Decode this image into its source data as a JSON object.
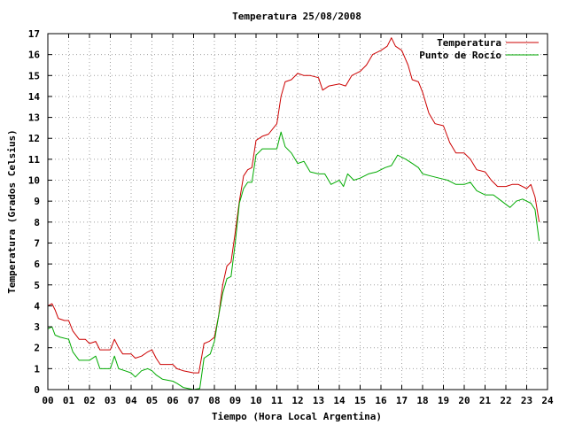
{
  "chart_data": {
    "type": "line",
    "title": "Temperatura 25/08/2008",
    "xlabel": "Tiempo (Hora Local Argentina)",
    "ylabel": "Temperatura (Grados Celsius)",
    "xlim": [
      0,
      24
    ],
    "ylim": [
      0,
      17
    ],
    "x_ticks": [
      "00",
      "01",
      "02",
      "03",
      "04",
      "05",
      "06",
      "07",
      "08",
      "09",
      "10",
      "11",
      "12",
      "13",
      "14",
      "15",
      "16",
      "17",
      "18",
      "19",
      "20",
      "21",
      "22",
      "23",
      "24"
    ],
    "y_ticks": [
      0,
      1,
      2,
      3,
      4,
      5,
      6,
      7,
      8,
      9,
      10,
      11,
      12,
      13,
      14,
      15,
      16,
      17
    ],
    "grid": true,
    "legend_position": "top-right",
    "series": [
      {
        "name": "Temperatura",
        "color": "#cc0000",
        "points": [
          [
            0.0,
            4.0
          ],
          [
            0.2,
            4.1
          ],
          [
            0.35,
            3.8
          ],
          [
            0.5,
            3.4
          ],
          [
            0.8,
            3.3
          ],
          [
            1.0,
            3.3
          ],
          [
            1.2,
            2.8
          ],
          [
            1.5,
            2.4
          ],
          [
            1.8,
            2.4
          ],
          [
            2.0,
            2.2
          ],
          [
            2.3,
            2.3
          ],
          [
            2.5,
            1.9
          ],
          [
            3.0,
            1.9
          ],
          [
            3.2,
            2.4
          ],
          [
            3.4,
            2.0
          ],
          [
            3.6,
            1.7
          ],
          [
            4.0,
            1.7
          ],
          [
            4.2,
            1.5
          ],
          [
            4.5,
            1.6
          ],
          [
            4.8,
            1.8
          ],
          [
            5.0,
            1.9
          ],
          [
            5.2,
            1.5
          ],
          [
            5.4,
            1.2
          ],
          [
            5.8,
            1.2
          ],
          [
            6.0,
            1.2
          ],
          [
            6.2,
            1.0
          ],
          [
            6.5,
            0.9
          ],
          [
            7.0,
            0.8
          ],
          [
            7.25,
            0.8
          ],
          [
            7.5,
            2.2
          ],
          [
            7.75,
            2.3
          ],
          [
            8.0,
            2.5
          ],
          [
            8.2,
            3.5
          ],
          [
            8.4,
            5.0
          ],
          [
            8.6,
            5.9
          ],
          [
            8.8,
            6.1
          ],
          [
            9.0,
            7.5
          ],
          [
            9.2,
            9.0
          ],
          [
            9.4,
            10.2
          ],
          [
            9.6,
            10.5
          ],
          [
            9.8,
            10.6
          ],
          [
            10.0,
            11.9
          ],
          [
            10.3,
            12.1
          ],
          [
            10.6,
            12.2
          ],
          [
            11.0,
            12.7
          ],
          [
            11.2,
            14.0
          ],
          [
            11.4,
            14.7
          ],
          [
            11.7,
            14.8
          ],
          [
            12.0,
            15.1
          ],
          [
            12.3,
            15.0
          ],
          [
            12.6,
            15.0
          ],
          [
            13.0,
            14.9
          ],
          [
            13.2,
            14.3
          ],
          [
            13.5,
            14.5
          ],
          [
            14.0,
            14.6
          ],
          [
            14.3,
            14.5
          ],
          [
            14.6,
            15.0
          ],
          [
            15.0,
            15.2
          ],
          [
            15.3,
            15.5
          ],
          [
            15.6,
            16.0
          ],
          [
            16.0,
            16.2
          ],
          [
            16.3,
            16.4
          ],
          [
            16.5,
            16.8
          ],
          [
            16.7,
            16.4
          ],
          [
            17.0,
            16.2
          ],
          [
            17.3,
            15.5
          ],
          [
            17.5,
            14.8
          ],
          [
            17.8,
            14.7
          ],
          [
            18.0,
            14.2
          ],
          [
            18.3,
            13.2
          ],
          [
            18.6,
            12.7
          ],
          [
            19.0,
            12.6
          ],
          [
            19.3,
            11.8
          ],
          [
            19.6,
            11.3
          ],
          [
            20.0,
            11.3
          ],
          [
            20.3,
            11.0
          ],
          [
            20.6,
            10.5
          ],
          [
            21.0,
            10.4
          ],
          [
            21.3,
            10.0
          ],
          [
            21.6,
            9.7
          ],
          [
            22.0,
            9.7
          ],
          [
            22.3,
            9.8
          ],
          [
            22.6,
            9.8
          ],
          [
            23.0,
            9.6
          ],
          [
            23.2,
            9.8
          ],
          [
            23.4,
            9.2
          ],
          [
            23.6,
            8.0
          ]
        ]
      },
      {
        "name": "Punto de Rocío",
        "color": "#00aa00",
        "points": [
          [
            0.0,
            2.9
          ],
          [
            0.2,
            3.0
          ],
          [
            0.35,
            2.6
          ],
          [
            0.6,
            2.5
          ],
          [
            1.0,
            2.4
          ],
          [
            1.2,
            1.8
          ],
          [
            1.5,
            1.4
          ],
          [
            2.0,
            1.4
          ],
          [
            2.3,
            1.6
          ],
          [
            2.5,
            1.0
          ],
          [
            3.0,
            1.0
          ],
          [
            3.2,
            1.6
          ],
          [
            3.4,
            1.0
          ],
          [
            3.7,
            0.9
          ],
          [
            4.0,
            0.8
          ],
          [
            4.2,
            0.6
          ],
          [
            4.5,
            0.9
          ],
          [
            4.8,
            1.0
          ],
          [
            5.0,
            0.9
          ],
          [
            5.2,
            0.7
          ],
          [
            5.5,
            0.5
          ],
          [
            6.0,
            0.4
          ],
          [
            6.2,
            0.3
          ],
          [
            6.5,
            0.1
          ],
          [
            7.0,
            0.0
          ],
          [
            7.3,
            0.05
          ],
          [
            7.5,
            1.5
          ],
          [
            7.8,
            1.7
          ],
          [
            8.0,
            2.3
          ],
          [
            8.2,
            3.5
          ],
          [
            8.4,
            4.6
          ],
          [
            8.6,
            5.3
          ],
          [
            8.8,
            5.4
          ],
          [
            9.0,
            7.0
          ],
          [
            9.2,
            8.9
          ],
          [
            9.4,
            9.6
          ],
          [
            9.6,
            9.9
          ],
          [
            9.8,
            9.9
          ],
          [
            10.0,
            11.2
          ],
          [
            10.3,
            11.5
          ],
          [
            10.6,
            11.5
          ],
          [
            11.0,
            11.5
          ],
          [
            11.2,
            12.3
          ],
          [
            11.4,
            11.6
          ],
          [
            11.7,
            11.3
          ],
          [
            12.0,
            10.8
          ],
          [
            12.3,
            10.9
          ],
          [
            12.6,
            10.4
          ],
          [
            13.0,
            10.3
          ],
          [
            13.3,
            10.3
          ],
          [
            13.6,
            9.8
          ],
          [
            14.0,
            10.0
          ],
          [
            14.2,
            9.7
          ],
          [
            14.4,
            10.3
          ],
          [
            14.7,
            10.0
          ],
          [
            15.0,
            10.1
          ],
          [
            15.4,
            10.3
          ],
          [
            15.8,
            10.4
          ],
          [
            16.2,
            10.6
          ],
          [
            16.5,
            10.7
          ],
          [
            16.8,
            11.2
          ],
          [
            17.2,
            11.0
          ],
          [
            17.5,
            10.8
          ],
          [
            17.8,
            10.6
          ],
          [
            18.0,
            10.3
          ],
          [
            18.4,
            10.2
          ],
          [
            18.8,
            10.1
          ],
          [
            19.2,
            10.0
          ],
          [
            19.6,
            9.8
          ],
          [
            20.0,
            9.8
          ],
          [
            20.3,
            9.9
          ],
          [
            20.6,
            9.5
          ],
          [
            21.0,
            9.3
          ],
          [
            21.4,
            9.3
          ],
          [
            21.8,
            9.0
          ],
          [
            22.2,
            8.7
          ],
          [
            22.5,
            9.0
          ],
          [
            22.8,
            9.1
          ],
          [
            23.0,
            9.0
          ],
          [
            23.2,
            8.9
          ],
          [
            23.4,
            8.6
          ],
          [
            23.6,
            7.1
          ]
        ]
      }
    ]
  }
}
